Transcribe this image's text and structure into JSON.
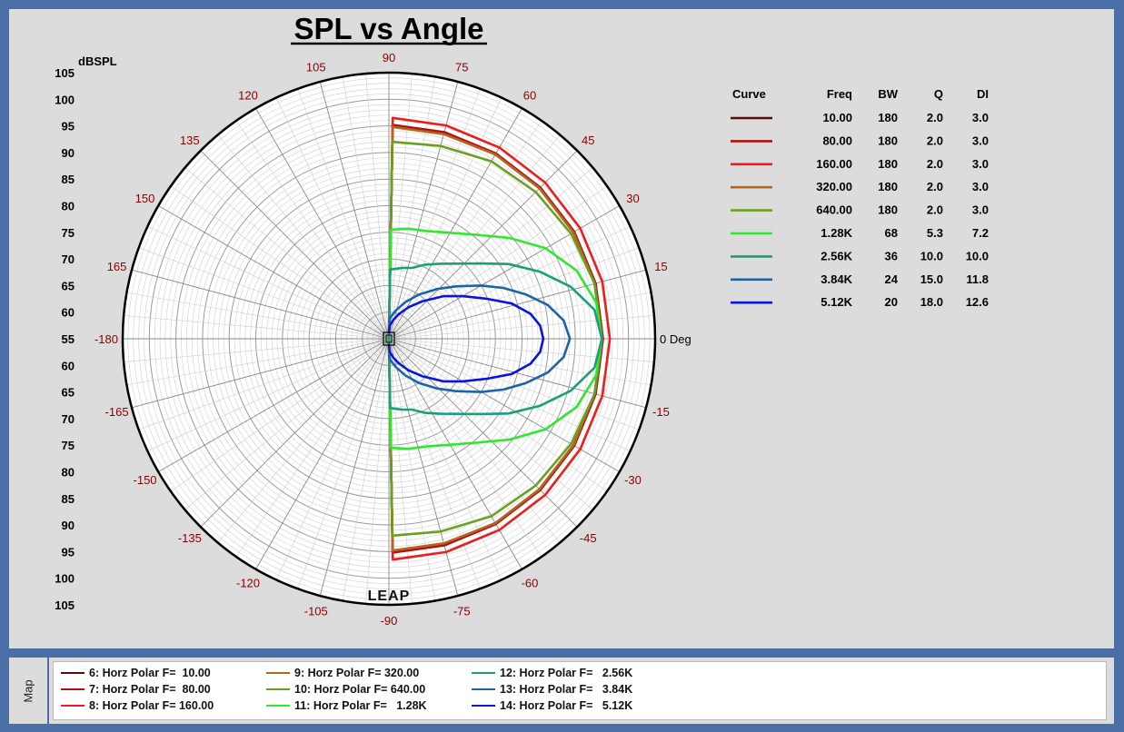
{
  "chart_data": {
    "type": "polar",
    "title": "SPL vs Angle",
    "radial_unit": "dBSPL",
    "radial_range": [
      55,
      105
    ],
    "radial_ticks": [
      55,
      60,
      65,
      70,
      75,
      80,
      85,
      90,
      95,
      100,
      105
    ],
    "angle_ticks": [
      0,
      15,
      30,
      45,
      60,
      75,
      90,
      105,
      120,
      135,
      150,
      165,
      -180,
      -165,
      -150,
      -135,
      -120,
      -105,
      -90,
      -75,
      -60,
      -45,
      -30,
      -15
    ],
    "zero_label": "0 Deg",
    "watermark": "LEAP",
    "grid": true,
    "table": {
      "headers": [
        "Curve",
        "Freq",
        "BW",
        "Q",
        "DI"
      ],
      "rows": [
        {
          "freq": "10.00",
          "bw": "180",
          "q": "2.0",
          "di": "3.0"
        },
        {
          "freq": "80.00",
          "bw": "180",
          "q": "2.0",
          "di": "3.0"
        },
        {
          "freq": "160.00",
          "bw": "180",
          "q": "2.0",
          "di": "3.0"
        },
        {
          "freq": "320.00",
          "bw": "180",
          "q": "2.0",
          "di": "3.0"
        },
        {
          "freq": "640.00",
          "bw": "180",
          "q": "2.0",
          "di": "3.0"
        },
        {
          "freq": "1.28K",
          "bw": "68",
          "q": "5.3",
          "di": "7.2"
        },
        {
          "freq": "2.56K",
          "bw": "36",
          "q": "10.0",
          "di": "10.0"
        },
        {
          "freq": "3.84K",
          "bw": "24",
          "q": "15.0",
          "di": "11.8"
        },
        {
          "freq": "5.12K",
          "bw": "20",
          "q": "18.0",
          "di": "12.6"
        }
      ]
    },
    "series": [
      {
        "name": "6: Horz Polar F=  10.00",
        "color": "#5a0a0a",
        "points": [
          [
            0,
            95
          ],
          [
            15,
            95
          ],
          [
            30,
            95
          ],
          [
            45,
            95
          ],
          [
            60,
            95
          ],
          [
            75,
            95
          ],
          [
            89,
            95
          ],
          [
            90,
            55
          ]
        ]
      },
      {
        "name": "7: Horz Polar F=  80.00",
        "color": "#b01010",
        "points": [
          [
            0,
            95.2
          ],
          [
            15,
            95.2
          ],
          [
            30,
            95.2
          ],
          [
            45,
            95.2
          ],
          [
            60,
            95.2
          ],
          [
            75,
            95.2
          ],
          [
            89,
            95.2
          ],
          [
            90,
            55
          ]
        ]
      },
      {
        "name": "8: Horz Polar F= 160.00",
        "color": "#ee1c1c",
        "points": [
          [
            0,
            96.5
          ],
          [
            15,
            96.5
          ],
          [
            30,
            96.5
          ],
          [
            45,
            96.5
          ],
          [
            60,
            96.5
          ],
          [
            75,
            96.5
          ],
          [
            89,
            96.5
          ],
          [
            90,
            55
          ]
        ]
      },
      {
        "name": "9: Horz Polar F= 320.00",
        "color": "#b8641e",
        "points": [
          [
            0,
            95
          ],
          [
            15,
            95
          ],
          [
            30,
            95
          ],
          [
            45,
            95
          ],
          [
            60,
            95
          ],
          [
            75,
            94.8
          ],
          [
            89,
            94.8
          ],
          [
            90,
            55
          ]
        ]
      },
      {
        "name": "10: Horz Polar F= 640.00",
        "color": "#6aa020",
        "points": [
          [
            0,
            95
          ],
          [
            15,
            95
          ],
          [
            30,
            94.5
          ],
          [
            45,
            94
          ],
          [
            60,
            93.5
          ],
          [
            75,
            92.5
          ],
          [
            89,
            92
          ],
          [
            90,
            55
          ]
        ]
      },
      {
        "name": "11: Horz Polar F=   1.28K",
        "color": "#2ee82e",
        "points": [
          [
            0,
            95
          ],
          [
            10,
            94.5
          ],
          [
            20,
            92.5
          ],
          [
            30,
            89
          ],
          [
            40,
            84.5
          ],
          [
            50,
            80.5
          ],
          [
            60,
            78
          ],
          [
            70,
            76.5
          ],
          [
            80,
            76
          ],
          [
            89,
            75.5
          ],
          [
            90,
            55
          ]
        ]
      },
      {
        "name": "12: Horz Polar F=   2.56K",
        "color": "#18a07a",
        "points": [
          [
            0,
            95
          ],
          [
            8,
            94
          ],
          [
            16,
            90.5
          ],
          [
            24,
            86
          ],
          [
            32,
            81.5
          ],
          [
            40,
            77
          ],
          [
            48,
            74
          ],
          [
            56,
            72
          ],
          [
            64,
            70.5
          ],
          [
            72,
            69
          ],
          [
            80,
            68.5
          ],
          [
            89,
            68
          ],
          [
            90,
            55
          ]
        ]
      },
      {
        "name": "13: Horz Polar F=   3.84K",
        "color": "#1a64a8",
        "points": [
          [
            0,
            89
          ],
          [
            6,
            88
          ],
          [
            12,
            85.5
          ],
          [
            18,
            82
          ],
          [
            24,
            78.5
          ],
          [
            30,
            75
          ],
          [
            38,
            71
          ],
          [
            46,
            68
          ],
          [
            56,
            65
          ],
          [
            66,
            62.5
          ],
          [
            76,
            60.5
          ],
          [
            86,
            59
          ],
          [
            90,
            58
          ]
        ]
      },
      {
        "name": "14: Horz Polar F=   5.12K",
        "color": "#0a14e0",
        "points": [
          [
            0,
            84
          ],
          [
            5,
            83.5
          ],
          [
            10,
            82
          ],
          [
            16,
            79
          ],
          [
            22,
            75
          ],
          [
            30,
            71
          ],
          [
            38,
            68
          ],
          [
            48,
            64.5
          ],
          [
            58,
            62
          ],
          [
            68,
            60
          ],
          [
            78,
            58.5
          ],
          [
            86,
            57.5
          ],
          [
            90,
            56
          ]
        ]
      }
    ]
  }
}
